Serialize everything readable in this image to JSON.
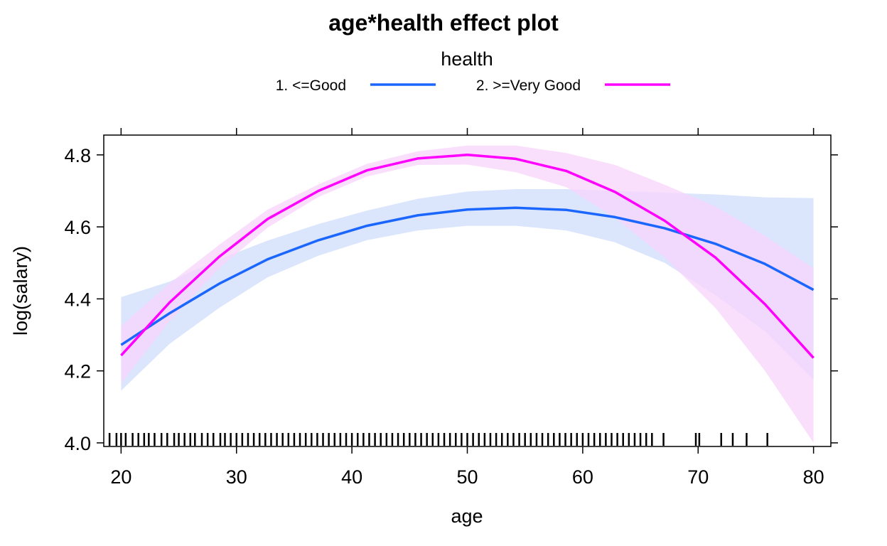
{
  "chart_data": {
    "type": "line",
    "title": "age*health effect plot",
    "xlabel": "age",
    "ylabel": "log(salary)",
    "xlim": [
      18.5,
      81.5
    ],
    "ylim": [
      3.99,
      4.855
    ],
    "x_ticks": [
      20,
      30,
      40,
      50,
      60,
      70,
      80
    ],
    "x_tick_labels": [
      "20",
      "30",
      "40",
      "50",
      "60",
      "70",
      "80"
    ],
    "y_ticks": [
      4.0,
      4.2,
      4.4,
      4.6,
      4.8
    ],
    "y_tick_labels": [
      "4.0",
      "4.2",
      "4.4",
      "4.6",
      "4.8"
    ],
    "grid": false,
    "legend": {
      "title": "health",
      "placement": "top",
      "entries": [
        "1. <=Good",
        "2. >=Very Good"
      ]
    },
    "x": [
      20,
      24.2,
      28.5,
      32.7,
      37.1,
      41.3,
      45.7,
      50,
      54.2,
      58.6,
      62.8,
      67.1,
      71.5,
      75.8,
      80
    ],
    "series": [
      {
        "name": "1. <=Good",
        "color": "#1a66ff",
        "band_color": "#dbe6fd",
        "values": [
          4.272,
          4.36,
          4.442,
          4.51,
          4.563,
          4.603,
          4.632,
          4.648,
          4.653,
          4.647,
          4.627,
          4.596,
          4.553,
          4.497,
          4.425
        ],
        "lower": [
          4.145,
          4.275,
          4.375,
          4.46,
          4.52,
          4.563,
          4.59,
          4.603,
          4.603,
          4.59,
          4.557,
          4.5,
          4.41,
          4.31,
          4.175
        ],
        "upper": [
          4.405,
          4.448,
          4.51,
          4.562,
          4.608,
          4.645,
          4.678,
          4.698,
          4.705,
          4.705,
          4.7,
          4.695,
          4.69,
          4.682,
          4.68
        ]
      },
      {
        "name": "2. >=Very Good",
        "color": "#ff00ff",
        "band_color": "#f7d4fb",
        "values": [
          4.243,
          4.39,
          4.517,
          4.622,
          4.7,
          4.757,
          4.79,
          4.8,
          4.789,
          4.755,
          4.697,
          4.617,
          4.515,
          4.385,
          4.236
        ],
        "lower": [
          4.165,
          4.338,
          4.485,
          4.598,
          4.683,
          4.74,
          4.772,
          4.773,
          4.752,
          4.71,
          4.625,
          4.515,
          4.375,
          4.2,
          4.0
        ],
        "upper": [
          4.325,
          4.443,
          4.55,
          4.648,
          4.718,
          4.775,
          4.81,
          4.826,
          4.826,
          4.805,
          4.772,
          4.717,
          4.657,
          4.575,
          4.485
        ]
      }
    ],
    "rug_x": [
      19,
      19.6,
      20,
      20.4,
      21,
      21.5,
      22,
      22.4,
      22.9,
      23.5,
      24,
      24.6,
      25,
      25.5,
      26,
      26.4,
      27,
      27.5,
      28,
      28.6,
      29,
      29.5,
      30,
      30.5,
      31,
      31.5,
      32,
      32.5,
      33,
      33.5,
      34,
      34.5,
      35,
      35.5,
      36,
      36.5,
      37,
      37.5,
      38,
      38.5,
      39,
      39.5,
      40,
      40.5,
      41,
      41.5,
      42,
      42.5,
      43,
      43.5,
      44,
      44.5,
      45,
      45.5,
      46,
      46.5,
      47,
      47.5,
      48,
      48.5,
      49,
      49.5,
      50,
      50.5,
      51,
      51.5,
      52,
      52.5,
      53,
      53.5,
      54,
      54.5,
      55,
      55.5,
      56,
      56.5,
      57,
      57.5,
      58,
      58.5,
      59,
      59.5,
      60,
      60.5,
      61,
      61.5,
      62,
      62.5,
      63,
      63.5,
      64,
      64.5,
      65,
      65.5,
      66,
      67,
      69.8,
      70.1,
      72,
      73,
      74.2,
      76
    ]
  }
}
